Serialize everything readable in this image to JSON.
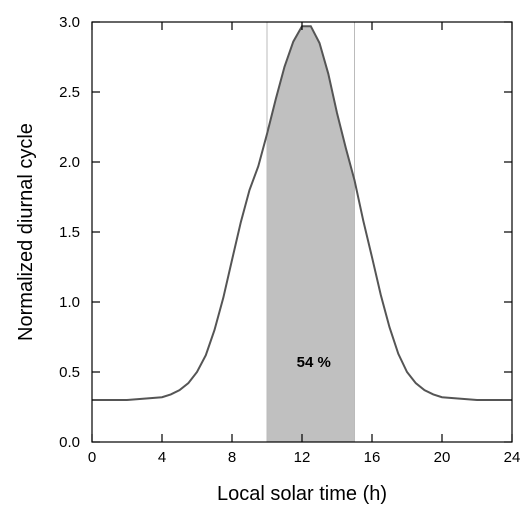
{
  "chart_data": {
    "type": "area",
    "xlabel": "Local solar time (h)",
    "ylabel": "Normalized diurnal cycle",
    "xlim": [
      0,
      24
    ],
    "ylim": [
      0,
      3.0
    ],
    "xticks": [
      0,
      4,
      8,
      12,
      16,
      20,
      24
    ],
    "yticks": [
      0.0,
      0.5,
      1.0,
      1.5,
      2.0,
      2.5,
      3.0
    ],
    "xtick_labels": [
      "0",
      "4",
      "8",
      "12",
      "16",
      "20",
      "24"
    ],
    "ytick_labels": [
      "0.0",
      "0.5",
      "1.0",
      "1.5",
      "2.0",
      "2.5",
      "3.0"
    ],
    "grid": false,
    "series": [
      {
        "x": [
          0,
          1,
          2,
          3,
          4,
          4.5,
          5,
          5.5,
          6,
          6.5,
          7,
          7.5,
          8,
          8.5,
          9,
          9.5,
          10,
          10.5,
          11,
          11.5,
          12,
          12.5,
          13,
          13.5,
          14,
          14.5,
          15,
          15.5,
          16,
          16.5,
          17,
          17.5,
          18,
          18.5,
          19,
          19.5,
          20,
          21,
          22,
          23,
          24
        ],
        "y": [
          0.3,
          0.3,
          0.3,
          0.31,
          0.32,
          0.34,
          0.37,
          0.42,
          0.5,
          0.62,
          0.8,
          1.03,
          1.3,
          1.57,
          1.8,
          1.97,
          2.2,
          2.45,
          2.68,
          2.86,
          2.97,
          2.97,
          2.85,
          2.63,
          2.35,
          2.1,
          1.87,
          1.58,
          1.32,
          1.05,
          0.82,
          0.63,
          0.5,
          0.42,
          0.37,
          0.34,
          0.32,
          0.31,
          0.3,
          0.3,
          0.3
        ]
      }
    ],
    "shaded_interval": [
      10,
      15
    ],
    "vertical_lines": [
      10,
      15
    ],
    "annotations": [
      {
        "text": "54 %",
        "x": 12.5,
        "y": 0.57
      }
    ],
    "colors": {
      "line": "#555555",
      "fill": "#c0c0c0",
      "axis": "#000000",
      "vline": "#bbbbbb"
    }
  }
}
